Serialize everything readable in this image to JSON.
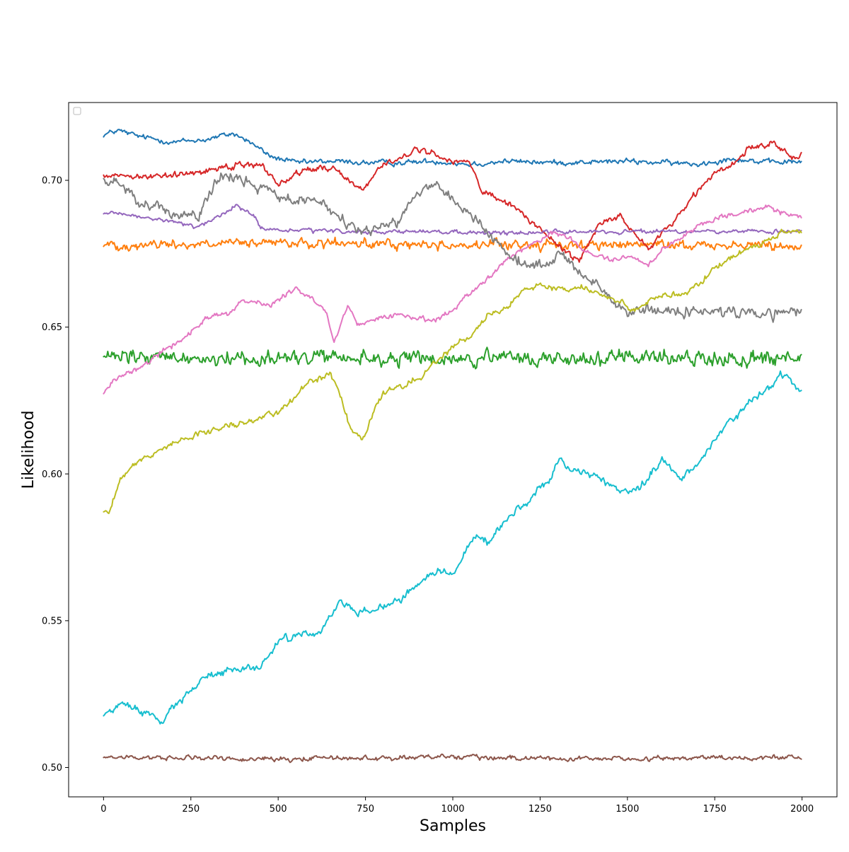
{
  "chart_data": {
    "type": "line",
    "title": "",
    "xlabel": "Samples",
    "ylabel": "Likelihood",
    "xlim": [
      -100,
      2100
    ],
    "ylim": [
      0.49,
      0.7265
    ],
    "x_ticks": [
      0,
      250,
      500,
      750,
      1000,
      1250,
      1500,
      1750,
      2000
    ],
    "x_tick_labels": [
      "0",
      "250",
      "500",
      "750",
      "1000",
      "1250",
      "1500",
      "1750",
      "2000"
    ],
    "y_ticks": [
      0.5,
      0.55,
      0.6,
      0.65,
      0.7
    ],
    "y_tick_labels": [
      "0.50",
      "0.55",
      "0.60",
      "0.65",
      "0.70"
    ],
    "grid": false,
    "legend": {
      "placement": "top-left",
      "entries": []
    },
    "series": [
      {
        "color": "#1f77b4",
        "noise": 0.0012,
        "x": [
          0,
          40,
          100,
          200,
          300,
          370,
          420,
          480,
          550,
          650,
          750,
          850,
          950,
          1050,
          1150,
          1300,
          1500,
          1700,
          1800,
          1900,
          2000
        ],
        "values": [
          0.7155,
          0.717,
          0.715,
          0.713,
          0.714,
          0.716,
          0.713,
          0.708,
          0.706,
          0.7065,
          0.706,
          0.706,
          0.7065,
          0.7055,
          0.7065,
          0.706,
          0.7065,
          0.7055,
          0.7075,
          0.706,
          0.7065
        ]
      },
      {
        "color": "#ff7f0e",
        "noise": 0.0022,
        "x": [
          0,
          500,
          1000,
          1500,
          2000
        ],
        "values": [
          0.678,
          0.6785,
          0.678,
          0.678,
          0.678
        ]
      },
      {
        "color": "#2ca02c",
        "noise": 0.0035,
        "x": [
          0,
          500,
          1000,
          1500,
          2000
        ],
        "values": [
          0.6395,
          0.6395,
          0.639,
          0.6395,
          0.6395
        ]
      },
      {
        "color": "#d62728",
        "noise": 0.0015,
        "x": [
          0,
          100,
          200,
          300,
          400,
          460,
          500,
          580,
          650,
          740,
          800,
          900,
          980,
          1050,
          1080,
          1110,
          1170,
          1230,
          1300,
          1360,
          1420,
          1480,
          1560,
          1620,
          1680,
          1740,
          1800,
          1850,
          1920,
          1980,
          2000
        ],
        "values": [
          0.702,
          0.7015,
          0.7015,
          0.7035,
          0.706,
          0.7045,
          0.699,
          0.7035,
          0.7045,
          0.697,
          0.705,
          0.7105,
          0.7075,
          0.706,
          0.697,
          0.694,
          0.6915,
          0.6855,
          0.678,
          0.6725,
          0.6855,
          0.6875,
          0.677,
          0.6845,
          0.6935,
          0.7015,
          0.7055,
          0.711,
          0.7125,
          0.708,
          0.7095
        ]
      },
      {
        "color": "#9467bd",
        "noise": 0.0009,
        "x": [
          0,
          100,
          200,
          260,
          330,
          380,
          430,
          450,
          500,
          700,
          900,
          1100,
          1300,
          1500,
          1700,
          1850,
          2000
        ],
        "values": [
          0.689,
          0.6875,
          0.686,
          0.684,
          0.6875,
          0.6915,
          0.688,
          0.6835,
          0.683,
          0.6825,
          0.6825,
          0.682,
          0.6825,
          0.6825,
          0.6825,
          0.6825,
          0.6825
        ]
      },
      {
        "color": "#8c564b",
        "noise": 0.0011,
        "x": [
          0,
          500,
          1000,
          1500,
          2000
        ],
        "values": [
          0.5035,
          0.503,
          0.5035,
          0.503,
          0.5035
        ]
      },
      {
        "color": "#e377c2",
        "noise": 0.0012,
        "x": [
          0,
          30,
          100,
          160,
          220,
          300,
          360,
          400,
          480,
          550,
          600,
          640,
          660,
          700,
          730,
          800,
          850,
          900,
          950,
          1000,
          1050,
          1100,
          1150,
          1200,
          1280,
          1320,
          1380,
          1450,
          1500,
          1560,
          1600,
          1700,
          1800,
          1900,
          2000
        ],
        "values": [
          0.627,
          0.632,
          0.6365,
          0.641,
          0.6455,
          0.6535,
          0.655,
          0.659,
          0.6575,
          0.6635,
          0.6595,
          0.6545,
          0.6445,
          0.6575,
          0.6505,
          0.6535,
          0.6545,
          0.653,
          0.6525,
          0.656,
          0.6615,
          0.6665,
          0.6725,
          0.6765,
          0.682,
          0.6815,
          0.6755,
          0.673,
          0.6745,
          0.6715,
          0.6765,
          0.6845,
          0.6885,
          0.6905,
          0.6875
        ]
      },
      {
        "color": "#7f7f7f",
        "noise": 0.0025,
        "x": [
          0,
          50,
          100,
          200,
          270,
          330,
          390,
          460,
          500,
          560,
          620,
          660,
          700,
          760,
          800,
          850,
          900,
          950,
          1000,
          1050,
          1100,
          1160,
          1220,
          1280,
          1310,
          1360,
          1420,
          1480,
          1550,
          1650,
          1800,
          1900,
          2000
        ],
        "values": [
          0.699,
          0.699,
          0.693,
          0.688,
          0.6875,
          0.701,
          0.7005,
          0.6965,
          0.6935,
          0.6935,
          0.6925,
          0.6895,
          0.6845,
          0.6825,
          0.6855,
          0.6865,
          0.6965,
          0.6985,
          0.6935,
          0.6885,
          0.6825,
          0.6745,
          0.6705,
          0.6715,
          0.6755,
          0.6685,
          0.6645,
          0.6555,
          0.6555,
          0.6555,
          0.6555,
          0.6545,
          0.6555
        ]
      },
      {
        "color": "#bcbd22",
        "noise": 0.0014,
        "x": [
          0,
          15,
          50,
          100,
          200,
          300,
          400,
          500,
          580,
          650,
          670,
          710,
          740,
          800,
          860,
          900,
          960,
          1000,
          1050,
          1100,
          1150,
          1200,
          1250,
          1300,
          1370,
          1430,
          1480,
          1520,
          1580,
          1660,
          1700,
          1760,
          1820,
          1880,
          1940,
          2000
        ],
        "values": [
          0.5875,
          0.5865,
          0.599,
          0.6045,
          0.6105,
          0.6145,
          0.6175,
          0.6205,
          0.6305,
          0.6345,
          0.629,
          0.6145,
          0.6115,
          0.6275,
          0.6305,
          0.6325,
          0.6385,
          0.6435,
          0.6465,
          0.6545,
          0.6565,
          0.6625,
          0.6645,
          0.6625,
          0.6635,
          0.6605,
          0.6585,
          0.6555,
          0.6605,
          0.6605,
          0.6645,
          0.6705,
          0.6755,
          0.6785,
          0.6825,
          0.6825
        ]
      },
      {
        "color": "#17becf",
        "noise": 0.0018,
        "x": [
          0,
          50,
          100,
          170,
          230,
          300,
          380,
          450,
          500,
          560,
          620,
          680,
          720,
          800,
          860,
          920,
          960,
          1000,
          1060,
          1100,
          1160,
          1240,
          1280,
          1300,
          1350,
          1400,
          1450,
          1500,
          1560,
          1600,
          1650,
          1700,
          1750,
          1800,
          1850,
          1900,
          1950,
          2000
        ],
        "values": [
          0.5175,
          0.5215,
          0.5195,
          0.5155,
          0.5245,
          0.5315,
          0.5335,
          0.5345,
          0.5425,
          0.5455,
          0.5455,
          0.5565,
          0.5525,
          0.5545,
          0.5575,
          0.5645,
          0.5675,
          0.5655,
          0.5795,
          0.5765,
          0.5855,
          0.5935,
          0.5985,
          0.6045,
          0.6005,
          0.5995,
          0.5965,
          0.5935,
          0.5975,
          0.6055,
          0.5985,
          0.6035,
          0.6115,
          0.6185,
          0.6245,
          0.6285,
          0.6345,
          0.6275
        ]
      }
    ]
  }
}
